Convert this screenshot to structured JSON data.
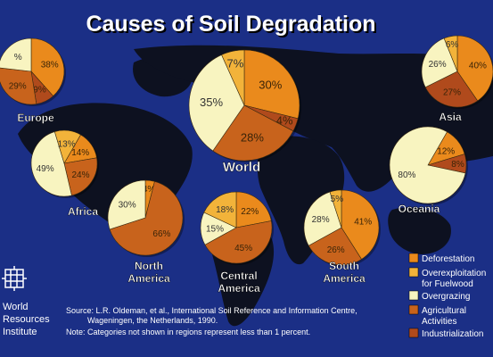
{
  "title": "Causes of Soil Degradation",
  "logo_text": [
    "World",
    "Resources",
    "Institute"
  ],
  "source_lines": [
    "Source: L.R. Oldeman, et al., International Soil Reference and Information Centre,",
    "Wageningen, the Netherlands, 1990.",
    "Note: Categories not shown in regions represent less than 1 percent."
  ],
  "legend": [
    {
      "key": "deforestation",
      "lines": [
        "Deforestation"
      ],
      "color": "#ea8a1c"
    },
    {
      "key": "overexploitation",
      "lines": [
        "Overexploitation",
        "for Fuelwood"
      ],
      "color": "#f2b33a"
    },
    {
      "key": "overgrazing",
      "lines": [
        "Overgrazing"
      ],
      "color": "#f8f4c0"
    },
    {
      "key": "agricultural",
      "lines": [
        "Agricultural",
        "Activities"
      ],
      "color": "#c8631c"
    },
    {
      "key": "industrialization",
      "lines": [
        "Industrialization"
      ],
      "color": "#b04a1c"
    }
  ],
  "colors": {
    "deforestation": "#ea8a1c",
    "overexploitation": "#f2b33a",
    "overgrazing": "#f8f4c0",
    "agricultural": "#c8631c",
    "industrialization": "#b04a1c",
    "background": "#1b2f86",
    "land": "#0d1120"
  },
  "chart_data": [
    {
      "type": "pie",
      "title": "Europe",
      "slices": [
        {
          "category": "deforestation",
          "value": 38,
          "label": "38%"
        },
        {
          "category": "industrialization",
          "value": 9,
          "label": "9%"
        },
        {
          "category": "agricultural",
          "value": 29,
          "label": "29%"
        },
        {
          "category": "overgrazing",
          "value": 23,
          "label": "%"
        }
      ]
    },
    {
      "type": "pie",
      "title": "Asia",
      "slices": [
        {
          "category": "deforestation",
          "value": 40,
          "label": "40%"
        },
        {
          "category": "industrialization",
          "value": 27,
          "label": "27%"
        },
        {
          "category": "overgrazing",
          "value": 26,
          "label": "26%"
        },
        {
          "category": "overexploitation",
          "value": 6,
          "label": "6%"
        }
      ]
    },
    {
      "type": "pie",
      "title": "World",
      "slices": [
        {
          "category": "deforestation",
          "value": 30,
          "label": "30%"
        },
        {
          "category": "industrialization",
          "value": 4,
          "label": "4%"
        },
        {
          "category": "agricultural",
          "value": 28,
          "label": "28%"
        },
        {
          "category": "overgrazing",
          "value": 35,
          "label": "35%"
        },
        {
          "category": "overexploitation",
          "value": 7,
          "label": "7%"
        }
      ]
    },
    {
      "type": "pie",
      "title": "Africa",
      "slices": [
        {
          "category": "deforestation",
          "value": 14,
          "label": "14%"
        },
        {
          "category": "agricultural",
          "value": 24,
          "label": "24%"
        },
        {
          "category": "overgrazing",
          "value": 49,
          "label": "49%"
        },
        {
          "category": "overexploitation",
          "value": 13,
          "label": "13%"
        }
      ]
    },
    {
      "type": "pie",
      "title": "Oceania",
      "slices": [
        {
          "category": "deforestation",
          "value": 12,
          "label": "12%"
        },
        {
          "category": "industrialization",
          "value": 8,
          "label": "8%"
        },
        {
          "category": "overgrazing",
          "value": 80,
          "label": "80%"
        }
      ]
    },
    {
      "type": "pie",
      "title": "North America",
      "slices": [
        {
          "category": "deforestation",
          "value": 4,
          "label": "4%"
        },
        {
          "category": "agricultural",
          "value": 66,
          "label": "66%"
        },
        {
          "category": "overgrazing",
          "value": 30,
          "label": "30%"
        }
      ]
    },
    {
      "type": "pie",
      "title": "Central America",
      "slices": [
        {
          "category": "deforestation",
          "value": 22,
          "label": "22%"
        },
        {
          "category": "agricultural",
          "value": 45,
          "label": "45%"
        },
        {
          "category": "overgrazing",
          "value": 15,
          "label": "15%"
        },
        {
          "category": "overexploitation",
          "value": 18,
          "label": "18%"
        }
      ]
    },
    {
      "type": "pie",
      "title": "South America",
      "slices": [
        {
          "category": "deforestation",
          "value": 41,
          "label": "41%"
        },
        {
          "category": "agricultural",
          "value": 26,
          "label": "26%"
        },
        {
          "category": "overgrazing",
          "value": 28,
          "label": "28%"
        },
        {
          "category": "overexploitation",
          "value": 5,
          "label": "5%"
        }
      ]
    }
  ]
}
